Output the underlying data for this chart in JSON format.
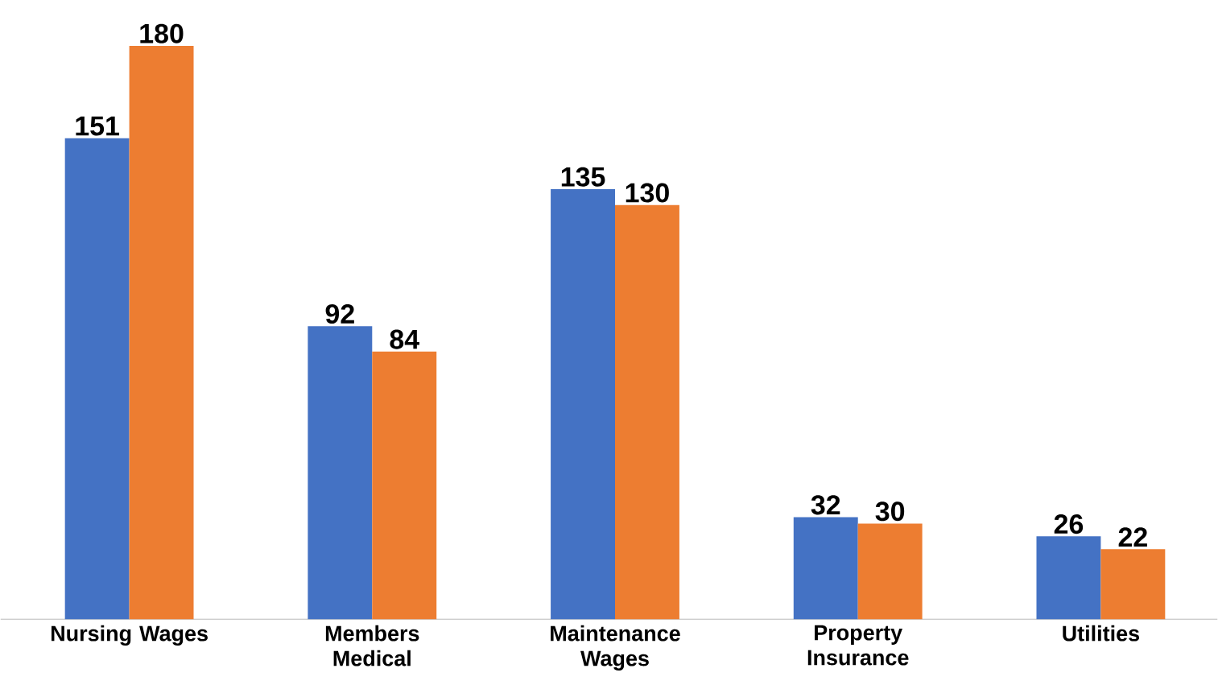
{
  "chart_data": {
    "type": "bar",
    "categories": [
      "Nursing Wages",
      "Members Medical",
      "Maintenance Wages",
      "Property Insurance",
      "Utilities"
    ],
    "series": [
      {
        "color": "#4472c4",
        "values": [
          151,
          92,
          135,
          32,
          26
        ]
      },
      {
        "color": "#ed7d31",
        "values": [
          180,
          84,
          130,
          30,
          22
        ]
      }
    ],
    "data_labels": true
  }
}
